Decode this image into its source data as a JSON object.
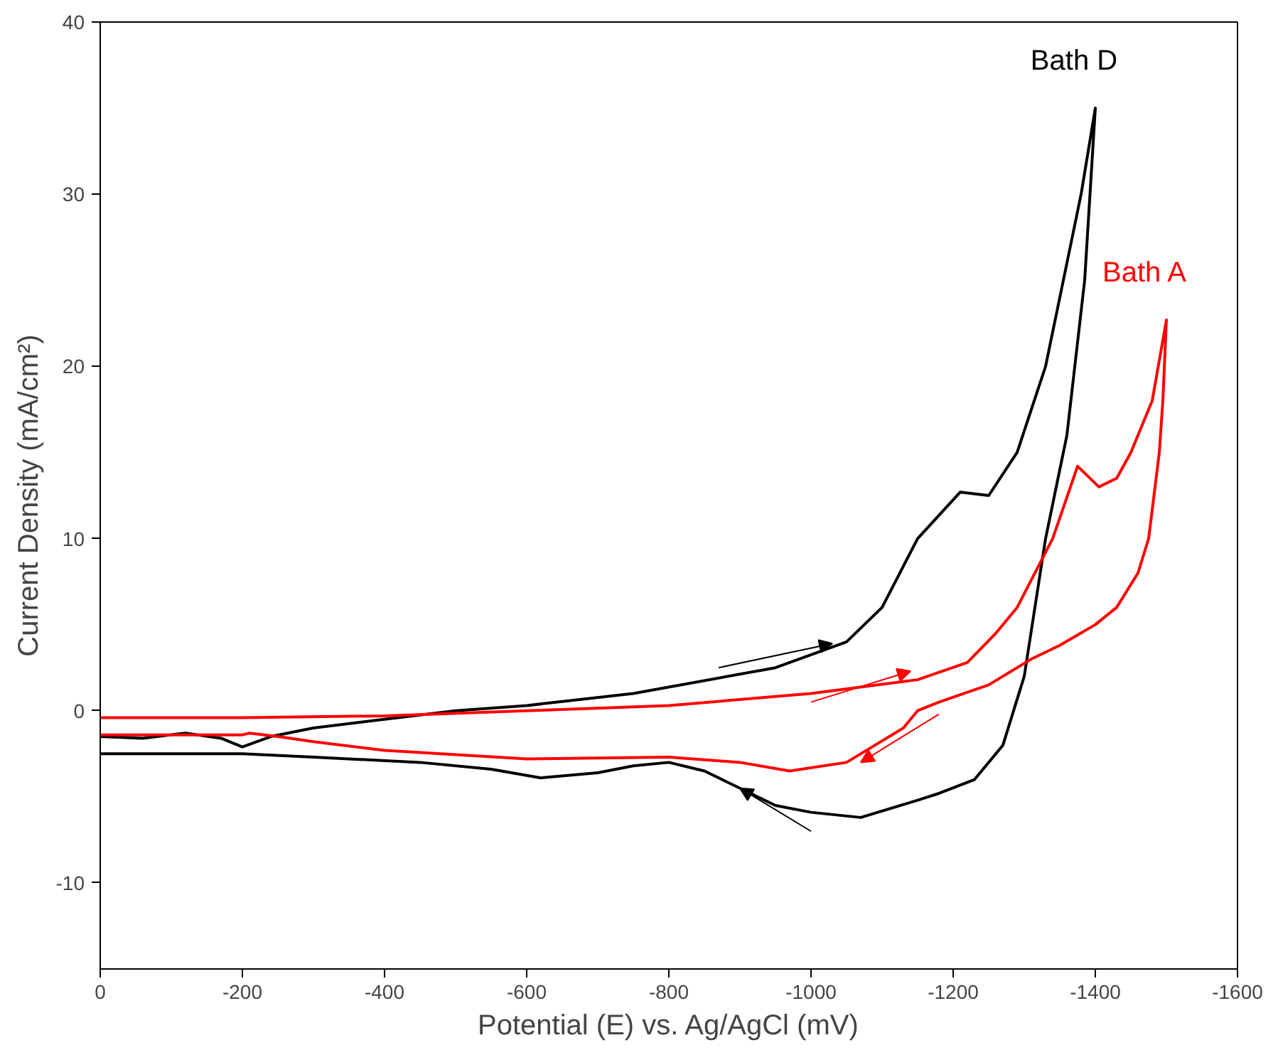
{
  "chart_data": {
    "type": "line",
    "xlabel": "Potential (E) vs. Ag/AgCl (mV)",
    "ylabel": "Current Density (mA/cm²)",
    "xlim": [
      0,
      -1600
    ],
    "ylim": [
      -15,
      40
    ],
    "xticks": [
      0,
      -200,
      -400,
      -600,
      -800,
      -1000,
      -1200,
      -1400,
      -1600
    ],
    "yticks": [
      -10,
      0,
      10,
      20,
      30,
      40
    ],
    "grid": false,
    "marker": "none",
    "line_style": "solid",
    "series": [
      {
        "name": "Bath D",
        "color": "#000000",
        "x": [
          0,
          -60,
          -120,
          -170,
          -200,
          -240,
          -300,
          -400,
          -500,
          -600,
          -750,
          -950,
          -1050,
          -1100,
          -1150,
          -1210,
          -1250,
          -1290,
          -1330,
          -1360,
          -1380,
          -1400,
          -1385,
          -1360,
          -1330,
          -1300,
          -1270,
          -1230,
          -1180,
          -1150,
          -1070,
          -1000,
          -950,
          -900,
          -850,
          -800,
          -750,
          -700,
          -620,
          -550,
          -450,
          -300,
          -200,
          -100,
          0
        ],
        "values": [
          -1.5,
          -1.6,
          -1.3,
          -1.6,
          -2.1,
          -1.5,
          -1.0,
          -0.5,
          0,
          0.3,
          1.0,
          2.5,
          4.0,
          6.0,
          10.0,
          12.7,
          12.5,
          15.0,
          20.0,
          26.0,
          30.0,
          35.0,
          25.0,
          16.0,
          10.0,
          2.0,
          -2.0,
          -4.0,
          -4.8,
          -5.2,
          -6.2,
          -5.9,
          -5.5,
          -4.5,
          -3.5,
          -3.0,
          -3.2,
          -3.6,
          -3.9,
          -3.4,
          -3.0,
          -2.7,
          -2.5,
          -2.5,
          -2.5
        ]
      },
      {
        "name": "Bath A",
        "color": "#ff0000",
        "x": [
          0,
          -200,
          -400,
          -600,
          -800,
          -1000,
          -1150,
          -1220,
          -1260,
          -1290,
          -1340,
          -1375,
          -1405,
          -1430,
          -1450,
          -1480,
          -1500,
          -1495,
          -1490,
          -1475,
          -1460,
          -1430,
          -1400,
          -1350,
          -1310,
          -1250,
          -1180,
          -1150,
          -1130,
          -1050,
          -970,
          -900,
          -800,
          -600,
          -400,
          -300,
          -250,
          -210,
          -200,
          -100,
          0
        ],
        "values": [
          -0.4,
          -0.4,
          -0.3,
          0,
          0.3,
          1.0,
          1.8,
          2.8,
          4.5,
          6.0,
          10.0,
          14.2,
          13.0,
          13.5,
          15.0,
          18.0,
          22.7,
          18.0,
          15.0,
          10.0,
          8.0,
          6.0,
          5.0,
          3.8,
          3.0,
          1.5,
          0.5,
          0,
          -1.0,
          -3.0,
          -3.5,
          -3.0,
          -2.7,
          -2.8,
          -2.3,
          -1.8,
          -1.5,
          -1.3,
          -1.4,
          -1.4,
          -1.4
        ]
      }
    ]
  }
}
